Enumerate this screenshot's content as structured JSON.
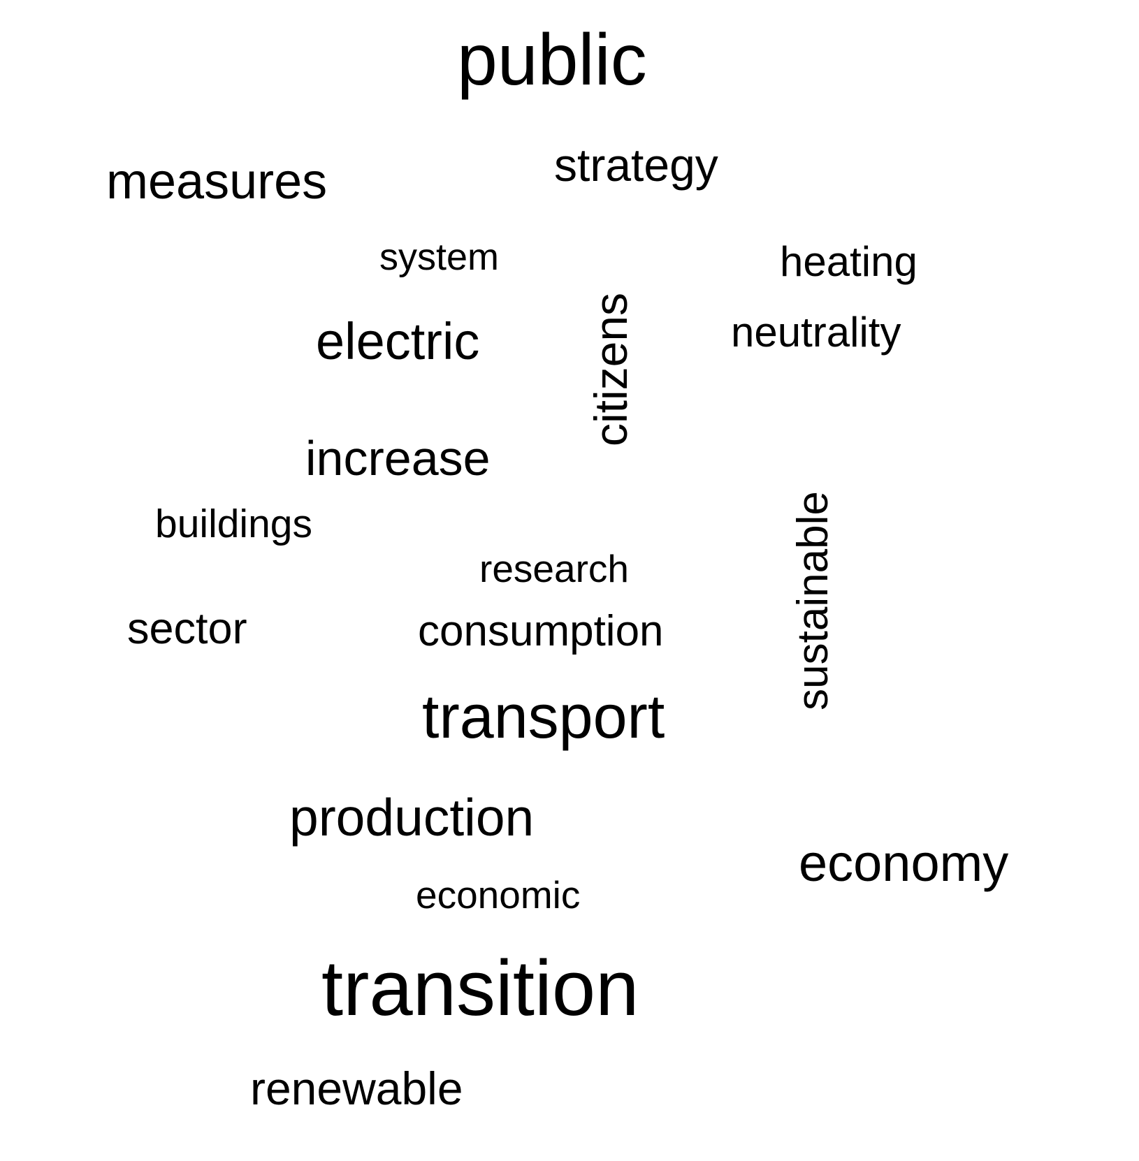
{
  "words": {
    "public": "public",
    "strategy": "strategy",
    "measures": "measures",
    "system": "system",
    "heating": "heating",
    "electric": "electric",
    "citizens": "citizens",
    "neutrality": "neutrality",
    "increase": "increase",
    "buildings": "buildings",
    "sustainable": "sustainable",
    "research": "research",
    "sector": "sector",
    "consumption": "consumption",
    "transport": "transport",
    "production": "production",
    "economy": "economy",
    "economic": "economic",
    "transition": "transition",
    "renewable": "renewable"
  },
  "colors": {
    "text": "#000000",
    "background": "#ffffff"
  }
}
